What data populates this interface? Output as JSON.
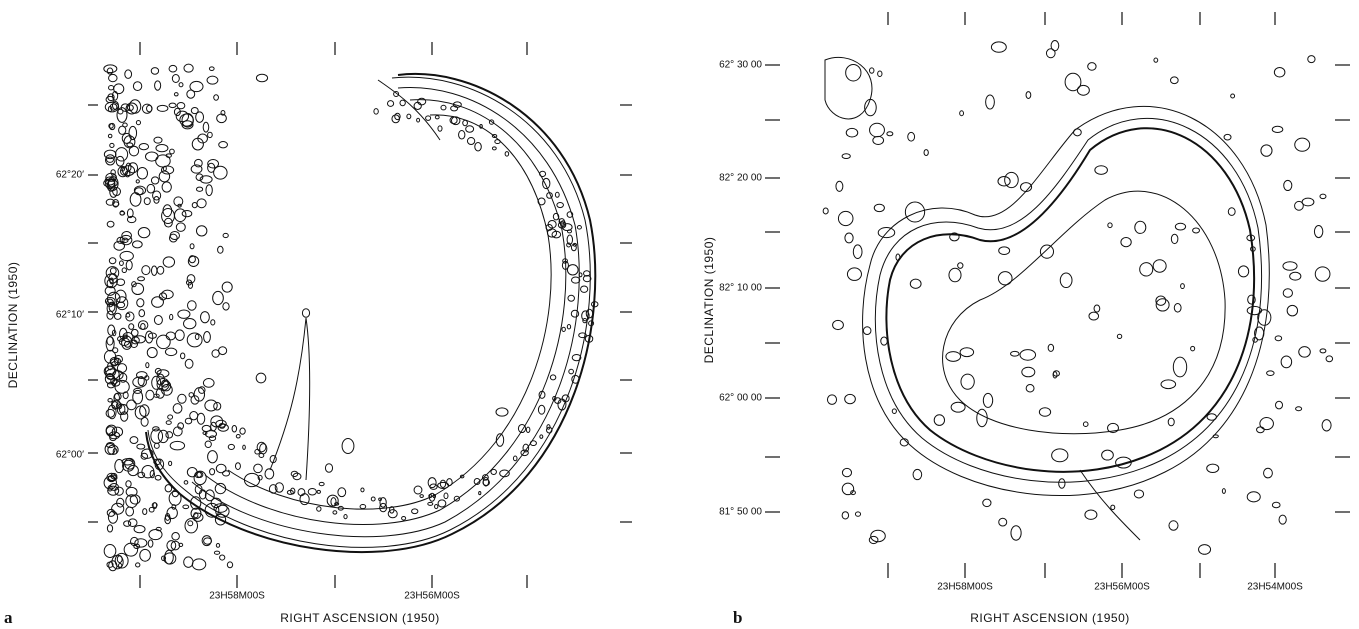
{
  "panels": [
    {
      "label": "a",
      "y_axis_title": "DECLINATION (1950)",
      "x_axis_title": "RIGHT ASCENSION (1950)",
      "y_tick_labels": [
        "62°20′",
        "62°10′",
        "62°00′"
      ],
      "x_tick_labels": [
        "23H58M00S",
        "23H56M00S"
      ]
    },
    {
      "label": "b",
      "y_axis_title": "DECLINATION (1950)",
      "x_axis_title": "RIGHT ASCENSION (1950)",
      "y_tick_labels": [
        "62° 30 00",
        "82° 20 00",
        "82° 10 00",
        "62° 00 00",
        "81° 50 00"
      ],
      "x_tick_labels": [
        "23H58M00S",
        "23H56M00S",
        "23H54M00S"
      ]
    }
  ]
}
